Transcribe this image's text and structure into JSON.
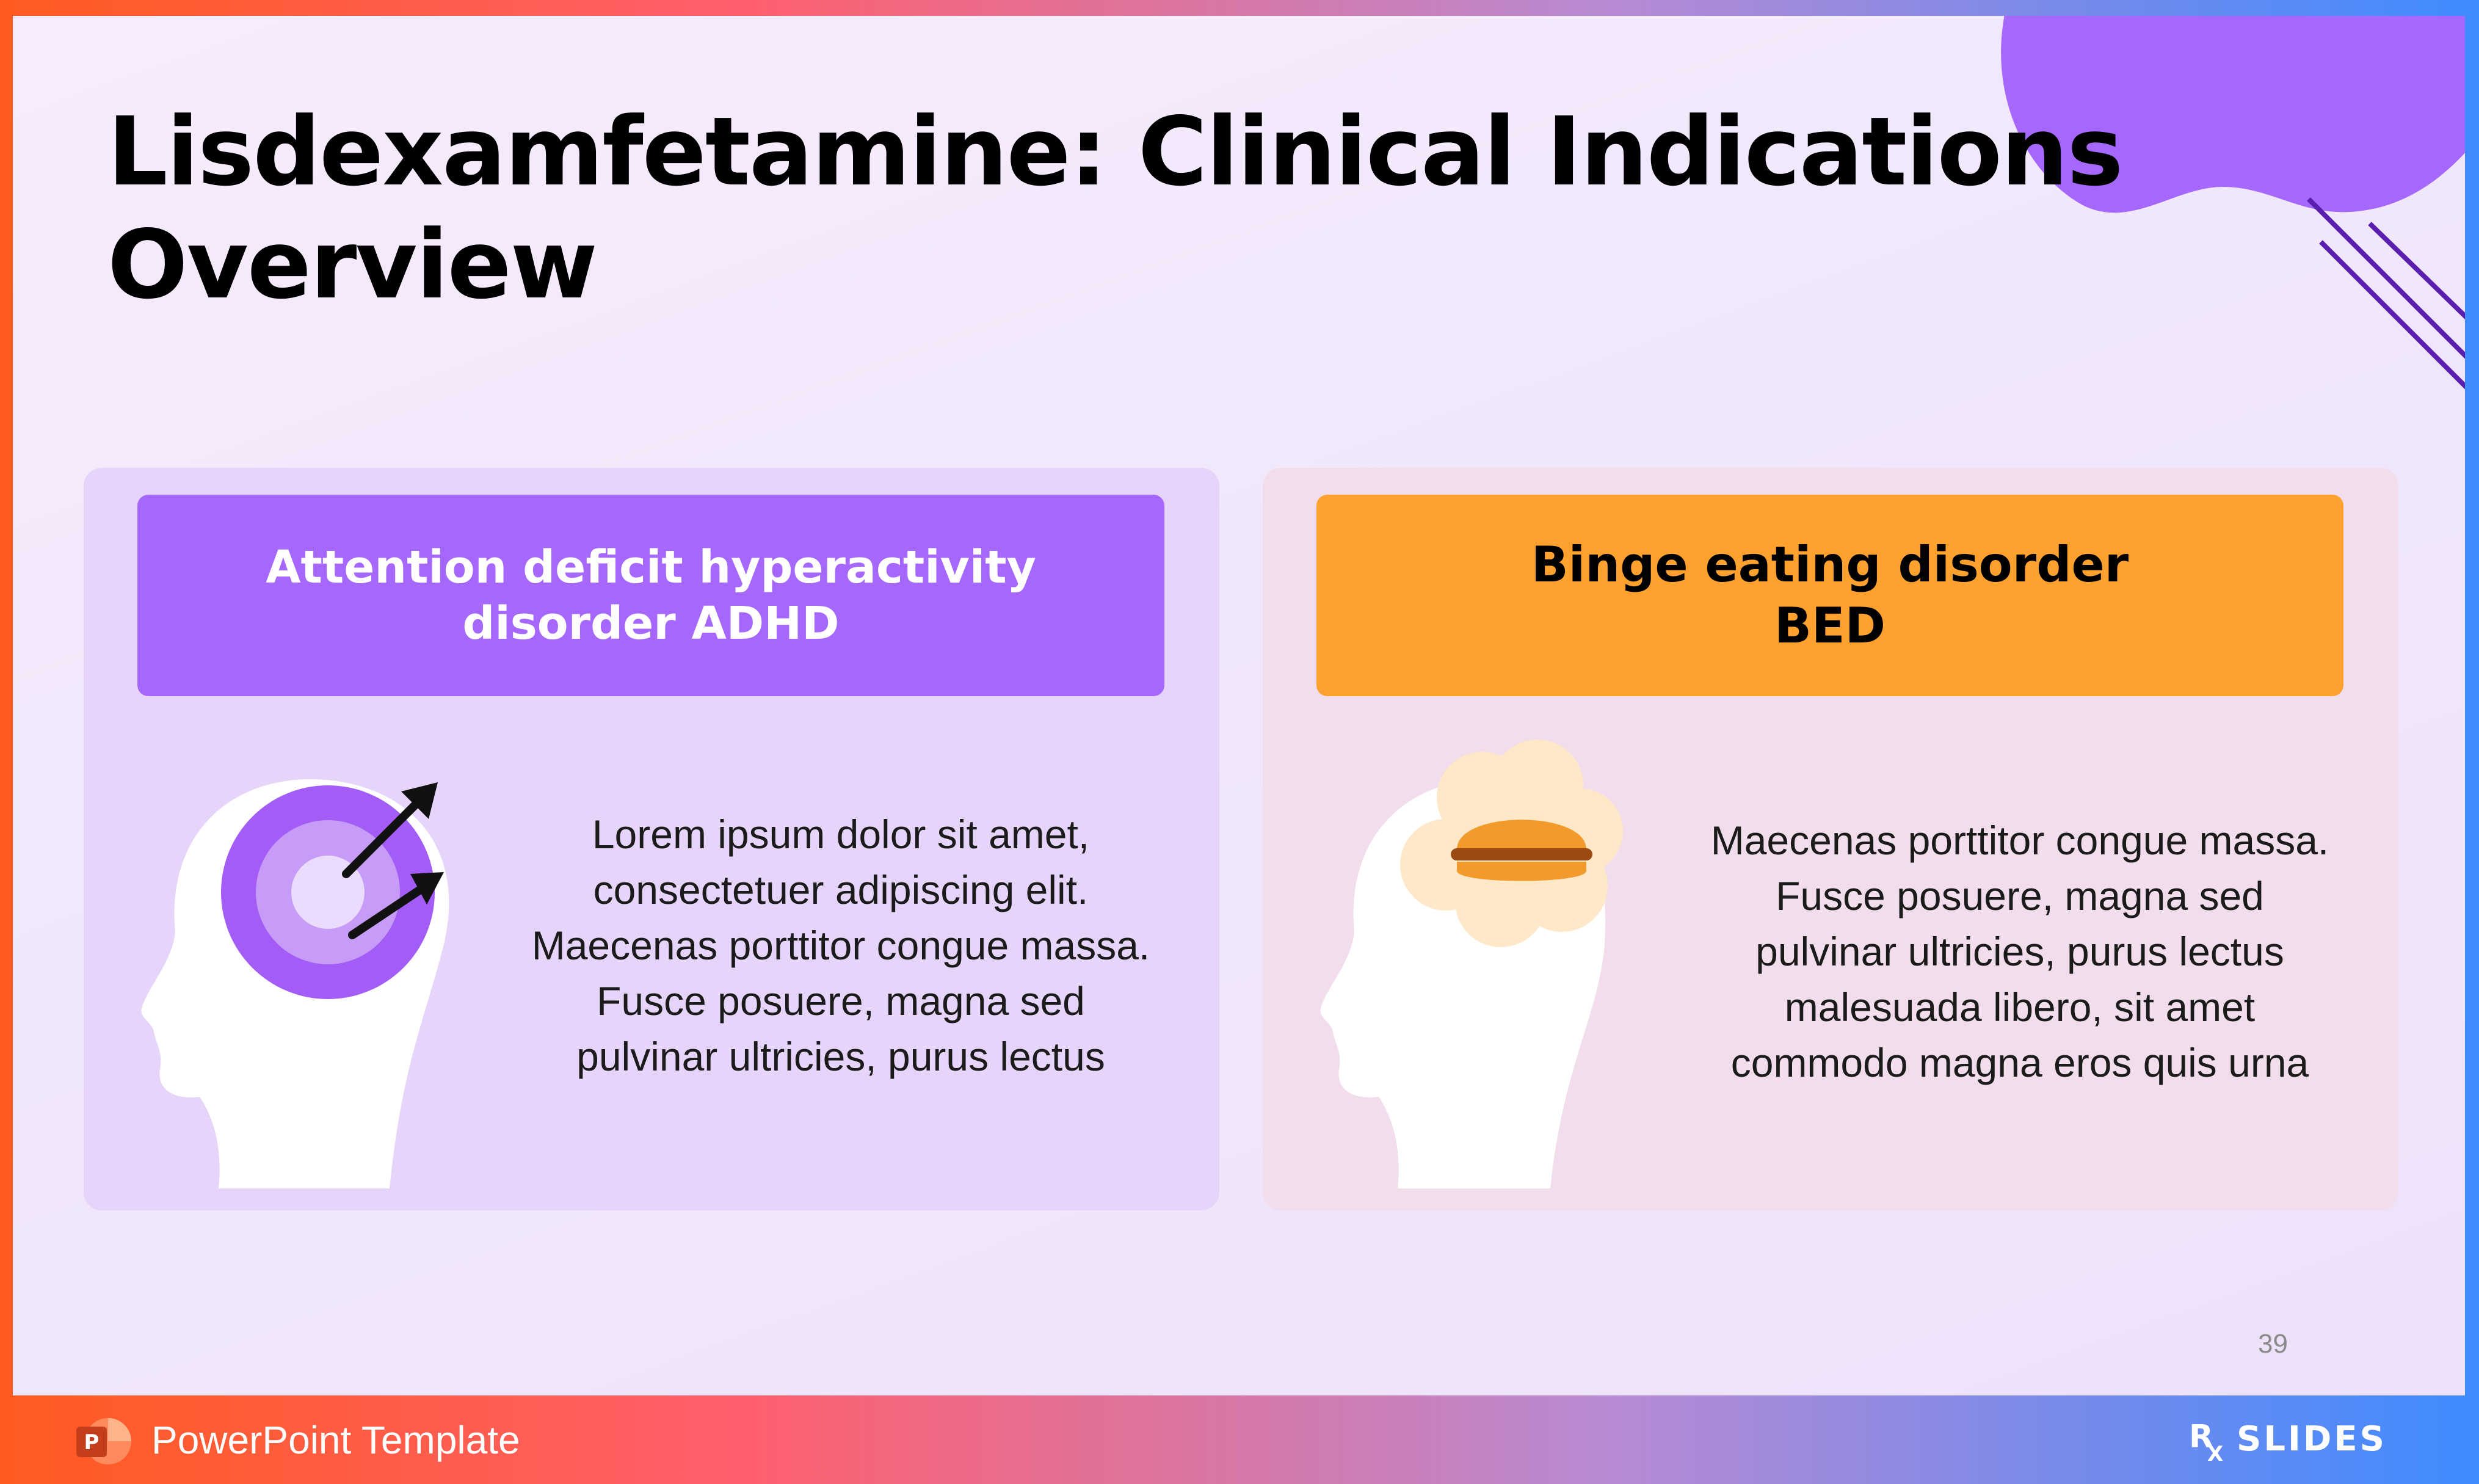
{
  "slide": {
    "title": "Lisdexamfetamine: Clinical Indications\nOverview",
    "page_number": "39"
  },
  "cards": [
    {
      "heading": "Attention deficit hyperactivity\ndisorder ADHD",
      "body": "Lorem ipsum dolor sit amet,\nconsectetuer adipiscing elit.\nMaecenas porttitor congue massa.\nFusce posuere, magna sed\npulvinar ultricies, purus lectus",
      "illustration": "head-target-icon"
    },
    {
      "heading": "Binge eating disorder\nBED",
      "body": "Maecenas porttitor congue massa.\nFusce posuere, magna sed\npulvinar ultricies, purus lectus\nmalesuada libero, sit amet\ncommodo magna eros quis urna",
      "illustration": "head-burger-thought-icon"
    }
  ],
  "footer": {
    "label": "PowerPoint Template",
    "app_icon": "powerpoint-icon",
    "brand": "RX SLIDES"
  },
  "colors": {
    "accent_purple": "#a567fc",
    "accent_orange": "#ffa12e",
    "card_left_bg": "#e6d4fa",
    "card_right_bg": "#f1ddeb"
  }
}
